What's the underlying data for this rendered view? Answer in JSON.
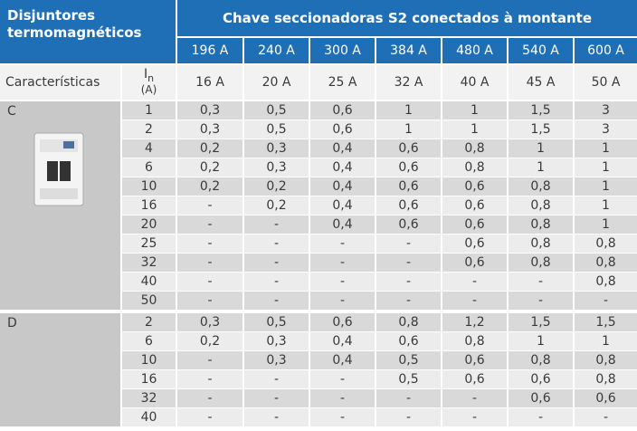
{
  "header": {
    "title": "Disjuntores termomagnéticos",
    "group": "Chave seccionadoras S2 conectados à montante",
    "columns": [
      "196 A",
      "240 A",
      "300 A",
      "384 A",
      "480 A",
      "540 A",
      "600 A"
    ]
  },
  "subheader": {
    "label": "Características",
    "in_symbol": "I",
    "in_subscript": "n",
    "in_unit": "(A)",
    "ratings": [
      "16 A",
      "20 A",
      "25 A",
      "32 A",
      "40 A",
      "45 A",
      "50 A"
    ]
  },
  "groups": [
    {
      "name": "C",
      "rows": [
        {
          "in": "1",
          "values": [
            "0,3",
            "0,5",
            "0,6",
            "1",
            "1",
            "1,5",
            "3"
          ]
        },
        {
          "in": "2",
          "values": [
            "0,3",
            "0,5",
            "0,6",
            "1",
            "1",
            "1,5",
            "3"
          ]
        },
        {
          "in": "4",
          "values": [
            "0,2",
            "0,3",
            "0,4",
            "0,6",
            "0,8",
            "1",
            "1"
          ]
        },
        {
          "in": "6",
          "values": [
            "0,2",
            "0,3",
            "0,4",
            "0,6",
            "0,8",
            "1",
            "1"
          ]
        },
        {
          "in": "10",
          "values": [
            "0,2",
            "0,2",
            "0,4",
            "0,6",
            "0,6",
            "0,8",
            "1"
          ]
        },
        {
          "in": "16",
          "values": [
            "-",
            "0,2",
            "0,4",
            "0,6",
            "0,6",
            "0,8",
            "1"
          ]
        },
        {
          "in": "20",
          "values": [
            "-",
            "-",
            "0,4",
            "0,6",
            "0,6",
            "0,8",
            "1"
          ]
        },
        {
          "in": "25",
          "values": [
            "-",
            "-",
            "-",
            "-",
            "0,6",
            "0,8",
            "0,8"
          ]
        },
        {
          "in": "32",
          "values": [
            "-",
            "-",
            "-",
            "-",
            "0,6",
            "0,8",
            "0,8"
          ]
        },
        {
          "in": "40",
          "values": [
            "-",
            "-",
            "-",
            "-",
            "-",
            "-",
            "0,8"
          ]
        },
        {
          "in": "50",
          "values": [
            "-",
            "-",
            "-",
            "-",
            "-",
            "-",
            "-"
          ]
        }
      ]
    },
    {
      "name": "D",
      "rows": [
        {
          "in": "2",
          "values": [
            "0,3",
            "0,5",
            "0,6",
            "0,8",
            "1,2",
            "1,5",
            "1,5"
          ]
        },
        {
          "in": "6",
          "values": [
            "0,2",
            "0,3",
            "0,4",
            "0,6",
            "0,8",
            "1",
            "1"
          ]
        },
        {
          "in": "10",
          "values": [
            "-",
            "0,3",
            "0,4",
            "0,5",
            "0,6",
            "0,8",
            "0,8"
          ]
        },
        {
          "in": "16",
          "values": [
            "-",
            "-",
            "-",
            "0,5",
            "0,6",
            "0,6",
            "0,8"
          ]
        },
        {
          "in": "32",
          "values": [
            "-",
            "-",
            "-",
            "-",
            "-",
            "0,6",
            "0,6"
          ]
        },
        {
          "in": "40",
          "values": [
            "-",
            "-",
            "-",
            "-",
            "-",
            "-",
            "-"
          ]
        }
      ]
    }
  ]
}
